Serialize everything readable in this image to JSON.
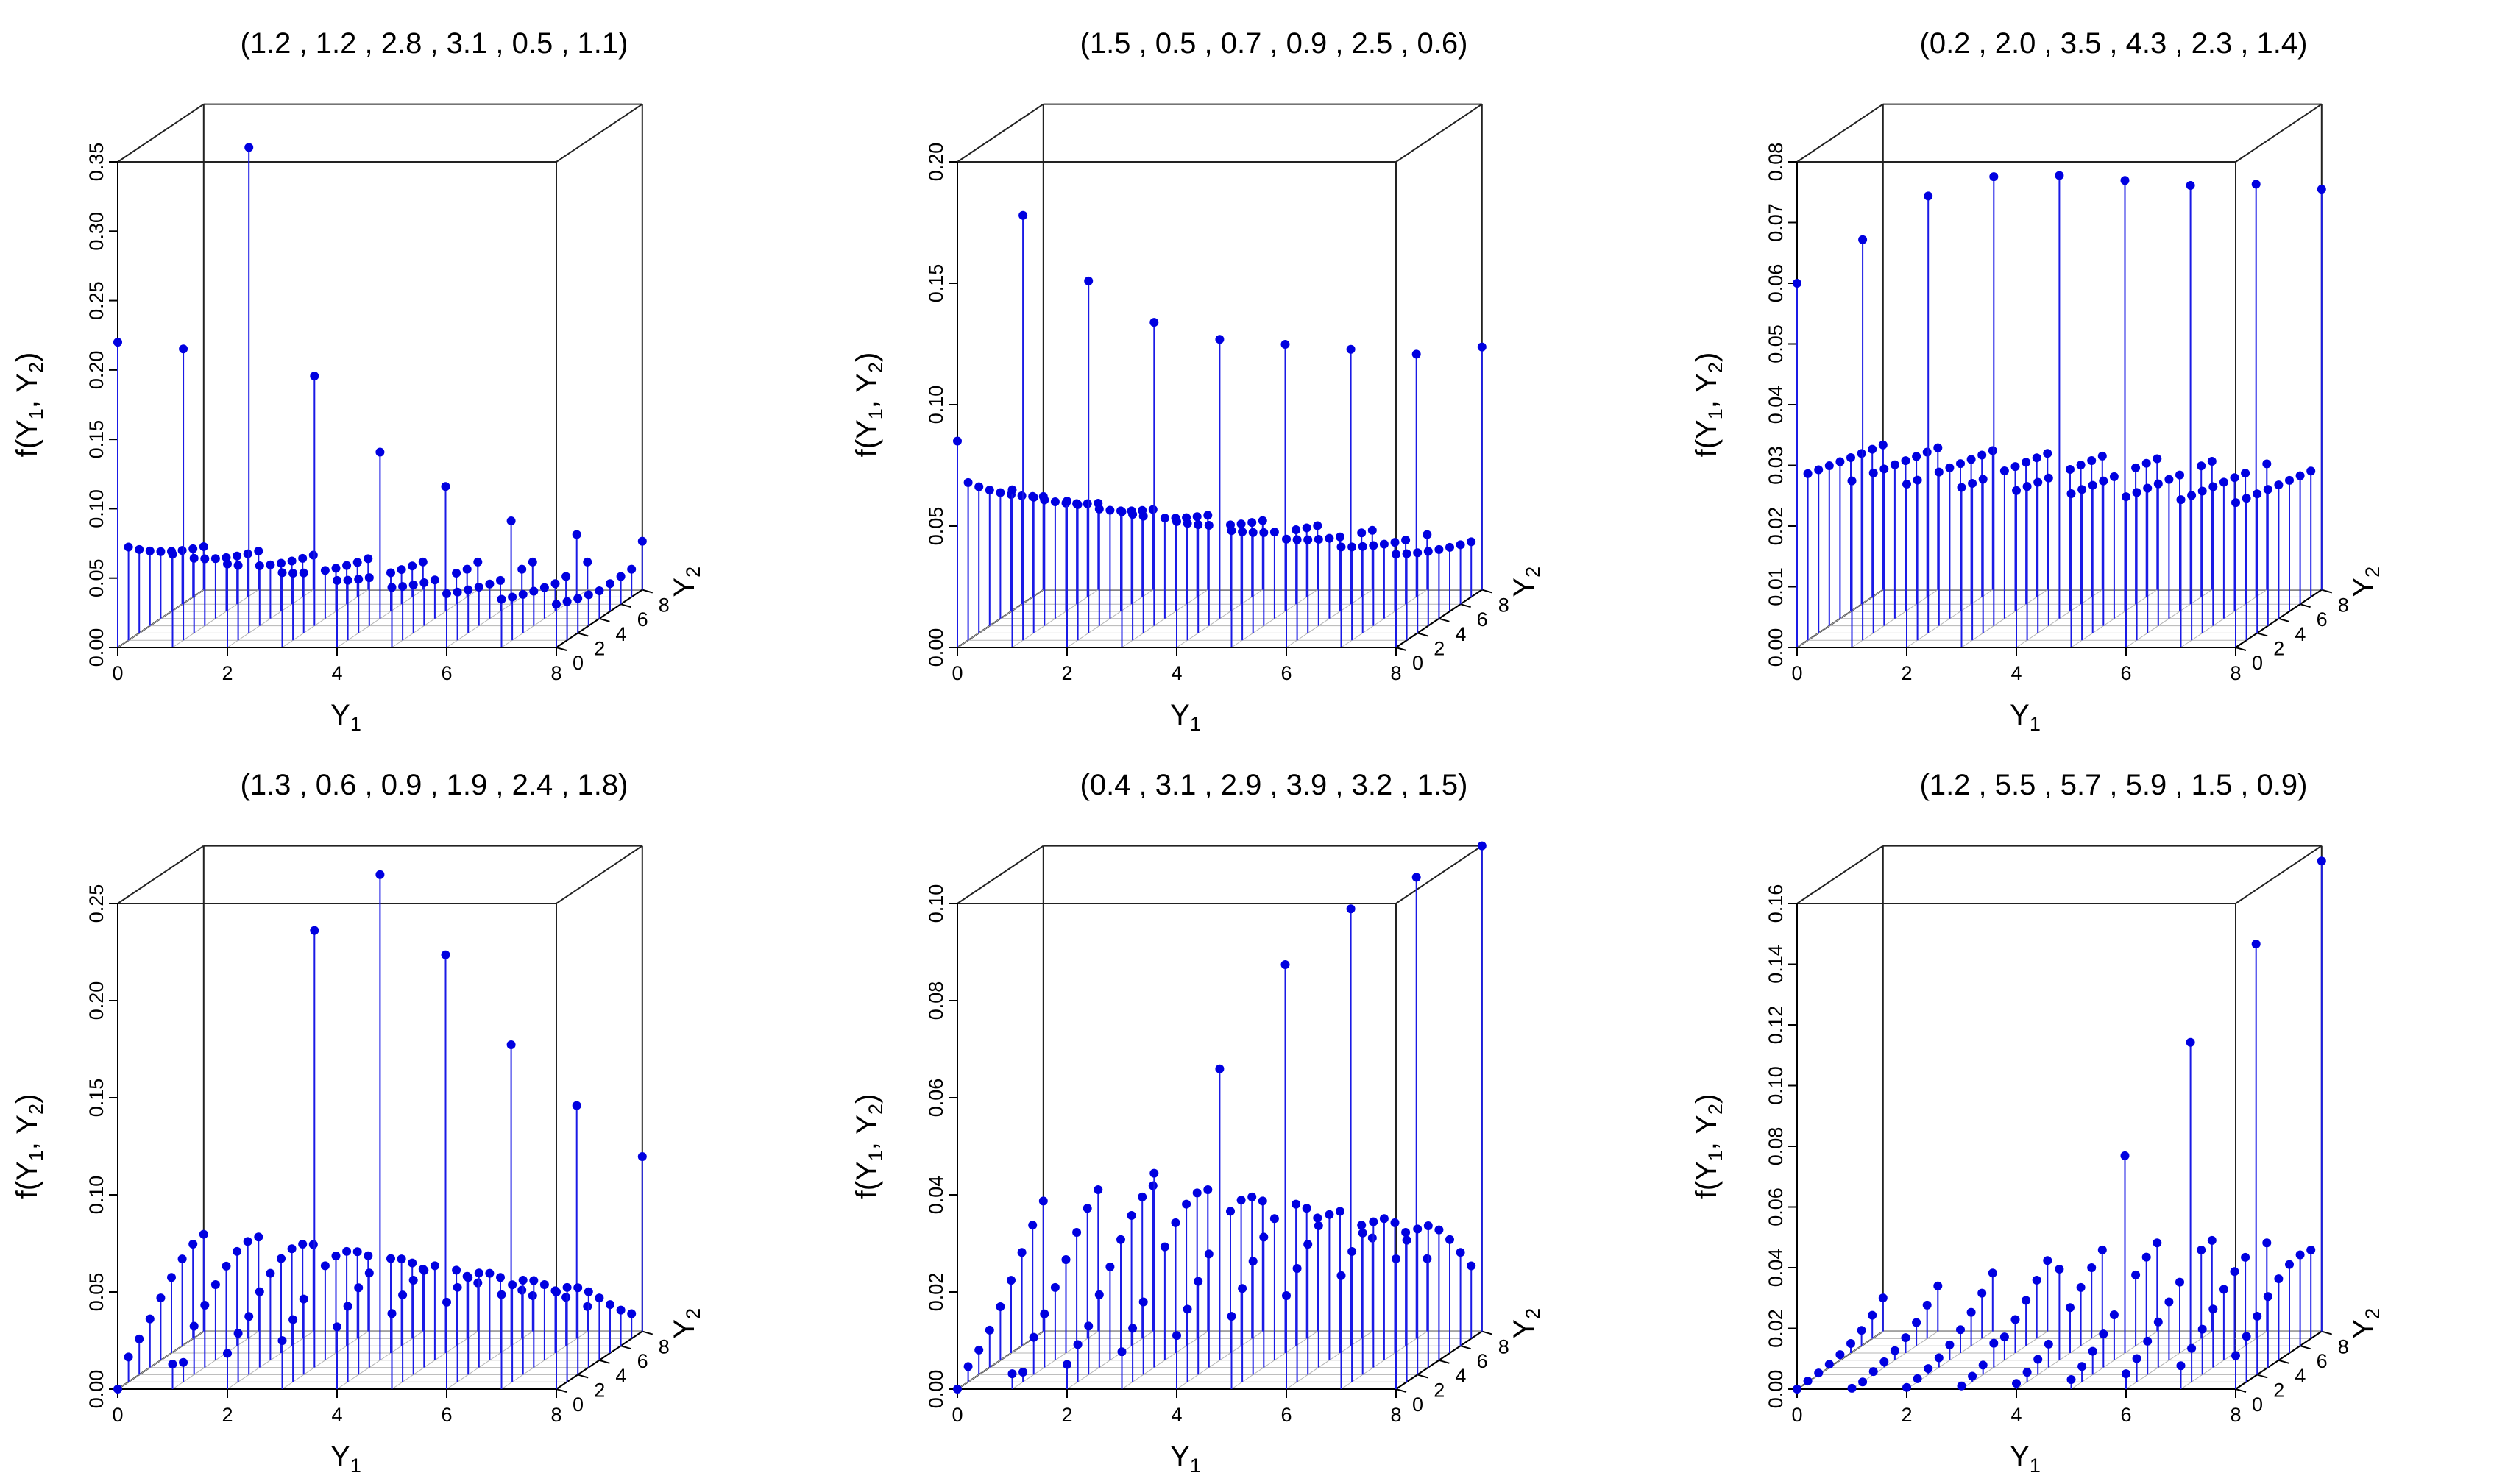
{
  "chart_data": [
    {
      "type": "scatter",
      "title": "(1.2 , 1.2 , 2.8 , 3.1 , 0.5 , 1.1)",
      "params": [
        1.2,
        1.2,
        2.8,
        3.1,
        0.5,
        1.1
      ],
      "xlabel": "Y",
      "xlabel_sub": "1",
      "ylabel": "Y",
      "ylabel_sub": "2",
      "zlabel_pre": "f(Y",
      "zlabel_sub1": "1",
      "zlabel_mid": ", Y",
      "zlabel_sub2": "2",
      "zlabel_post": ")",
      "xlim": [
        0,
        8
      ],
      "ylim": [
        0,
        8
      ],
      "zlim": [
        0,
        0.35
      ],
      "x_ticks": [
        "0",
        "2",
        "4",
        "6",
        "8"
      ],
      "y_ticks": [
        "0",
        "2",
        "4",
        "6",
        "8"
      ],
      "z_ticks": [
        "0.00",
        "0.05",
        "0.10",
        "0.15",
        "0.20",
        "0.25",
        "0.30",
        "0.35"
      ],
      "peak_points": [
        {
          "y1": 0,
          "y2": 0,
          "f": 0.22
        },
        {
          "y1": 1,
          "y2": 1,
          "f": 0.21
        },
        {
          "y1": 2,
          "y2": 2,
          "f": 0.35
        },
        {
          "y1": 3,
          "y2": 3,
          "f": 0.18
        },
        {
          "y1": 4,
          "y2": 4,
          "f": 0.12
        },
        {
          "y1": 5,
          "y2": 5,
          "f": 0.09
        },
        {
          "y1": 6,
          "y2": 6,
          "f": 0.06
        },
        {
          "y1": 7,
          "y2": 7,
          "f": 0.045
        },
        {
          "y1": 8,
          "y2": 8,
          "f": 0.035
        }
      ],
      "background": {
        "mode": "decay",
        "base": 0.075,
        "decay": 0.22,
        "min": 0.02
      }
    },
    {
      "type": "scatter",
      "title": "(1.5 , 0.5 , 0.7 , 0.9 , 2.5 , 0.6)",
      "params": [
        1.5,
        0.5,
        0.7,
        0.9,
        2.5,
        0.6
      ],
      "xlabel": "Y",
      "xlabel_sub": "1",
      "ylabel": "Y",
      "ylabel_sub": "2",
      "zlabel_pre": "f(Y",
      "zlabel_sub1": "1",
      "zlabel_mid": ", Y",
      "zlabel_sub2": "2",
      "zlabel_post": ")",
      "xlim": [
        0,
        8
      ],
      "ylim": [
        0,
        8
      ],
      "zlim": [
        0,
        0.2
      ],
      "x_ticks": [
        "0",
        "2",
        "4",
        "6",
        "8"
      ],
      "y_ticks": [
        "0",
        "2",
        "4",
        "6",
        "8"
      ],
      "z_ticks": [
        "0.00",
        "0.05",
        "0.10",
        "0.15",
        "0.20"
      ],
      "peak_points": [
        {
          "y1": 0,
          "y2": 0,
          "f": 0.085
        },
        {
          "y1": 1,
          "y2": 1,
          "f": 0.175
        },
        {
          "y1": 2,
          "y2": 2,
          "f": 0.145
        },
        {
          "y1": 3,
          "y2": 3,
          "f": 0.125
        },
        {
          "y1": 4,
          "y2": 4,
          "f": 0.115
        },
        {
          "y1": 5,
          "y2": 5,
          "f": 0.11
        },
        {
          "y1": 6,
          "y2": 6,
          "f": 0.105
        },
        {
          "y1": 7,
          "y2": 7,
          "f": 0.1
        },
        {
          "y1": 8,
          "y2": 8,
          "f": 0.1
        }
      ],
      "background": {
        "mode": "decay",
        "base": 0.07,
        "decay": 0.15,
        "min": 0.02
      }
    },
    {
      "type": "scatter",
      "title": "(0.2 , 2.0 , 3.5 , 4.3 , 2.3 , 1.4)",
      "params": [
        0.2,
        2.0,
        3.5,
        4.3,
        2.3,
        1.4
      ],
      "xlabel": "Y",
      "xlabel_sub": "1",
      "ylabel": "Y",
      "ylabel_sub": "2",
      "zlabel_pre": "f(Y",
      "zlabel_sub1": "1",
      "zlabel_mid": ", Y",
      "zlabel_sub2": "2",
      "zlabel_post": ")",
      "xlim": [
        0,
        8
      ],
      "ylim": [
        0,
        8
      ],
      "zlim": [
        0,
        0.08
      ],
      "x_ticks": [
        "0",
        "2",
        "4",
        "6",
        "8"
      ],
      "y_ticks": [
        "0",
        "2",
        "4",
        "6",
        "8"
      ],
      "z_ticks": [
        "0.00",
        "0.01",
        "0.02",
        "0.03",
        "0.04",
        "0.05",
        "0.06",
        "0.07",
        "0.08"
      ],
      "peak_points": [
        {
          "y1": 0,
          "y2": 0,
          "f": 0.06
        },
        {
          "y1": 1,
          "y2": 1,
          "f": 0.066
        },
        {
          "y1": 2,
          "y2": 2,
          "f": 0.072
        },
        {
          "y1": 3,
          "y2": 3,
          "f": 0.074
        },
        {
          "y1": 4,
          "y2": 4,
          "f": 0.073
        },
        {
          "y1": 5,
          "y2": 5,
          "f": 0.071
        },
        {
          "y1": 6,
          "y2": 6,
          "f": 0.069
        },
        {
          "y1": 7,
          "y2": 7,
          "f": 0.068
        },
        {
          "y1": 8,
          "y2": 8,
          "f": 0.066
        }
      ],
      "background": {
        "mode": "decay",
        "base": 0.028,
        "decay": 0.04,
        "min": 0.012
      }
    },
    {
      "type": "scatter",
      "title": "(1.3 , 0.6 , 0.9 , 1.9 , 2.4 , 1.8)",
      "params": [
        1.3,
        0.6,
        0.9,
        1.9,
        2.4,
        1.8
      ],
      "xlabel": "Y",
      "xlabel_sub": "1",
      "ylabel": "Y",
      "ylabel_sub": "2",
      "zlabel_pre": "f(Y",
      "zlabel_sub1": "1",
      "zlabel_mid": ", Y",
      "zlabel_sub2": "2",
      "zlabel_post": ")",
      "xlim": [
        0,
        8
      ],
      "ylim": [
        0,
        8
      ],
      "zlim": [
        0,
        0.25
      ],
      "x_ticks": [
        "0",
        "2",
        "4",
        "6",
        "8"
      ],
      "y_ticks": [
        "0",
        "2",
        "4",
        "6",
        "8"
      ],
      "z_ticks": [
        "0.00",
        "0.05",
        "0.10",
        "0.15",
        "0.20",
        "0.25"
      ],
      "peak_points": [
        {
          "y1": 0,
          "y2": 0,
          "f": 0.0
        },
        {
          "y1": 1,
          "y2": 1,
          "f": 0.01
        },
        {
          "y1": 2,
          "y2": 2,
          "f": 0.03
        },
        {
          "y1": 3,
          "y2": 3,
          "f": 0.225
        },
        {
          "y1": 4,
          "y2": 4,
          "f": 0.25
        },
        {
          "y1": 5,
          "y2": 5,
          "f": 0.205
        },
        {
          "y1": 6,
          "y2": 6,
          "f": 0.155
        },
        {
          "y1": 7,
          "y2": 7,
          "f": 0.12
        },
        {
          "y1": 8,
          "y2": 8,
          "f": 0.09
        }
      ],
      "background": {
        "mode": "hump",
        "peak": 0.05,
        "center": 4,
        "width": 3,
        "min": 0.01
      }
    },
    {
      "type": "scatter",
      "title": "(0.4 , 3.1 , 2.9 , 3.9 , 3.2 , 1.5)",
      "params": [
        0.4,
        3.1,
        2.9,
        3.9,
        3.2,
        1.5
      ],
      "xlabel": "Y",
      "xlabel_sub": "1",
      "ylabel": "Y",
      "ylabel_sub": "2",
      "zlabel_pre": "f(Y",
      "zlabel_sub1": "1",
      "zlabel_mid": ", Y",
      "zlabel_sub2": "2",
      "zlabel_post": ")",
      "xlim": [
        0,
        8
      ],
      "ylim": [
        0,
        8
      ],
      "zlim": [
        0,
        0.1
      ],
      "x_ticks": [
        "0",
        "2",
        "4",
        "6",
        "8"
      ],
      "y_ticks": [
        "0",
        "2",
        "4",
        "6",
        "8"
      ],
      "z_ticks": [
        "0.00",
        "0.02",
        "0.04",
        "0.06",
        "0.08",
        "0.10"
      ],
      "peak_points": [
        {
          "y1": 0,
          "y2": 0,
          "f": 0.0
        },
        {
          "y1": 1,
          "y2": 1,
          "f": 0.002
        },
        {
          "y1": 2,
          "y2": 2,
          "f": 0.01
        },
        {
          "y1": 3,
          "y2": 3,
          "f": 0.04
        },
        {
          "y1": 4,
          "y2": 4,
          "f": 0.06
        },
        {
          "y1": 5,
          "y2": 5,
          "f": 0.08
        },
        {
          "y1": 6,
          "y2": 6,
          "f": 0.09
        },
        {
          "y1": 7,
          "y2": 7,
          "f": 0.095
        },
        {
          "y1": 8,
          "y2": 8,
          "f": 0.1
        }
      ],
      "background": {
        "mode": "ramp",
        "peak": 0.03,
        "center": 5,
        "width": 3,
        "min": 0.0
      }
    },
    {
      "type": "scatter",
      "title": "(1.2 , 5.5 , 5.7 , 5.9 , 1.5 , 0.9)",
      "params": [
        1.2,
        5.5,
        5.7,
        5.9,
        1.5,
        0.9
      ],
      "xlabel": "Y",
      "xlabel_sub": "1",
      "ylabel": "Y",
      "ylabel_sub": "2",
      "zlabel_pre": "f(Y",
      "zlabel_sub1": "1",
      "zlabel_mid": ", Y",
      "zlabel_sub2": "2",
      "zlabel_post": ")",
      "xlim": [
        0,
        8
      ],
      "ylim": [
        0,
        8
      ],
      "zlim": [
        0,
        0.16
      ],
      "x_ticks": [
        "0",
        "2",
        "4",
        "6",
        "8"
      ],
      "y_ticks": [
        "0",
        "2",
        "4",
        "6",
        "8"
      ],
      "z_ticks": [
        "0.00",
        "0.02",
        "0.04",
        "0.06",
        "0.08",
        "0.10",
        "0.12",
        "0.14",
        "0.16"
      ],
      "peak_points": [
        {
          "y1": 0,
          "y2": 0,
          "f": 0.0
        },
        {
          "y1": 1,
          "y2": 1,
          "f": 0.0
        },
        {
          "y1": 2,
          "y2": 2,
          "f": 0.002
        },
        {
          "y1": 3,
          "y2": 3,
          "f": 0.008
        },
        {
          "y1": 4,
          "y2": 4,
          "f": 0.03
        },
        {
          "y1": 5,
          "y2": 5,
          "f": 0.065
        },
        {
          "y1": 6,
          "y2": 6,
          "f": 0.1
        },
        {
          "y1": 7,
          "y2": 7,
          "f": 0.13
        },
        {
          "y1": 8,
          "y2": 8,
          "f": 0.155
        }
      ],
      "background": {
        "mode": "ramp",
        "peak": 0.03,
        "center": 7,
        "width": 3,
        "min": 0.0
      }
    }
  ]
}
